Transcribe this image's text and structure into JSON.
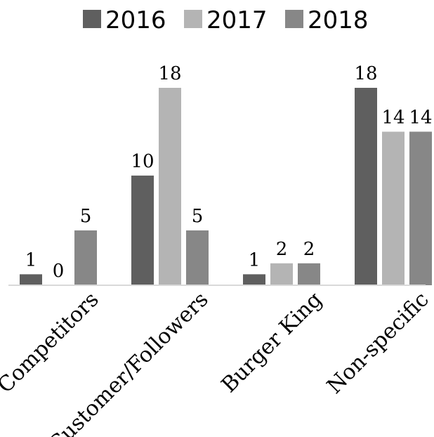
{
  "chart_data": {
    "type": "bar",
    "categories": [
      "Competitors",
      "Customer/Followers",
      "Burger King",
      "Non-specific"
    ],
    "series": [
      {
        "name": "2016",
        "color": "#5f5f5f",
        "values": [
          1,
          10,
          1,
          18
        ]
      },
      {
        "name": "2017",
        "color": "#b4b4b4",
        "values": [
          0,
          18,
          2,
          14
        ]
      },
      {
        "name": "2018",
        "color": "#878787",
        "values": [
          5,
          5,
          2,
          14
        ]
      }
    ],
    "ylim": [
      0,
      18
    ],
    "grid": false,
    "legend_position": "top",
    "axis_color": "#d9d9d9"
  }
}
